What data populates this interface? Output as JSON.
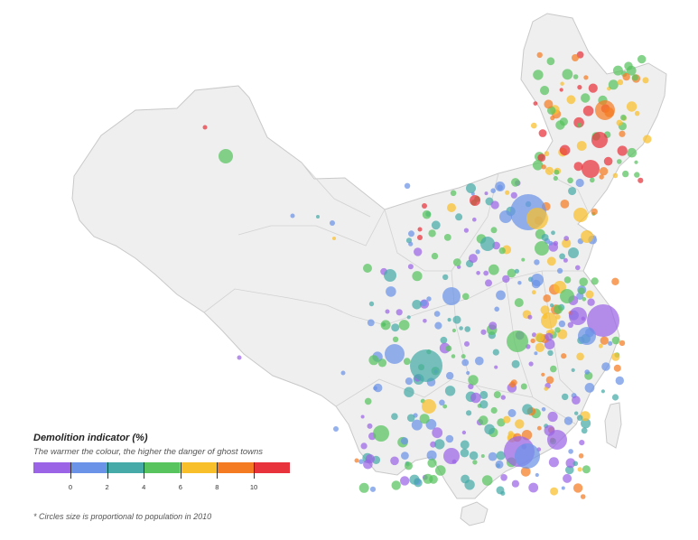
{
  "map": {
    "subject": "China",
    "land_color": "#efefef",
    "border_color": "#c9c9c9",
    "circle_opacity": 0.72
  },
  "legend": {
    "title": "Demolition indicator (%)",
    "subtitle": "The warmer the colour, the higher the danger of ghost towns",
    "colors": [
      "#9b64e6",
      "#6b93e8",
      "#45aaa8",
      "#57c45e",
      "#f9bf2b",
      "#f57b22",
      "#e8323c"
    ],
    "ticks": [
      "0",
      "2",
      "4",
      "6",
      "8",
      "10"
    ]
  },
  "footnote": "* Circles size is proportional to population in 2010"
}
